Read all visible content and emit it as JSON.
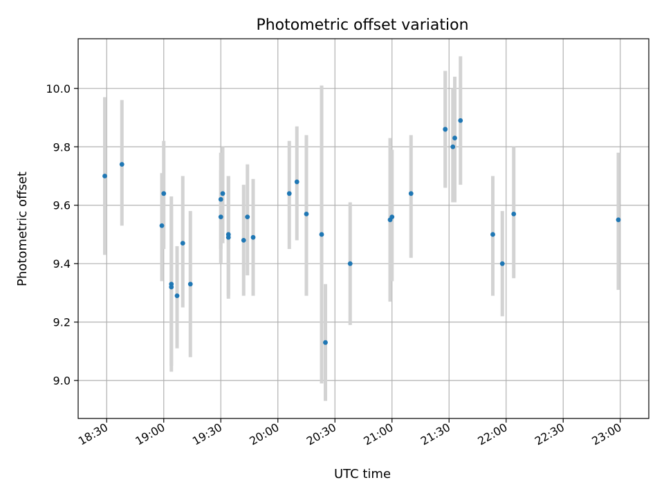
{
  "chart_data": {
    "type": "scatter",
    "title": "Photometric offset variation",
    "xlabel": "UTC time",
    "ylabel": "Photometric offset",
    "xlim": [
      "18:15",
      "23:15"
    ],
    "ylim": [
      8.87,
      10.17
    ],
    "grid": true,
    "x_ticks": [
      "18:30",
      "19:00",
      "19:30",
      "20:00",
      "20:30",
      "21:00",
      "21:30",
      "22:00",
      "22:30",
      "23:00"
    ],
    "y_ticks": [
      "9.0",
      "9.2",
      "9.4",
      "9.6",
      "9.8",
      "10.0"
    ],
    "colors": {
      "point": "#1f77b4",
      "error_bar": "#d3d3d3"
    },
    "series": [
      {
        "points": [
          {
            "x": "18:29",
            "y": 9.7,
            "err_low": 9.43,
            "err_high": 9.97
          },
          {
            "x": "18:38",
            "y": 9.74,
            "err_low": 9.53,
            "err_high": 9.96
          },
          {
            "x": "18:59",
            "y": 9.53,
            "err_low": 9.34,
            "err_high": 9.71
          },
          {
            "x": "19:00",
            "y": 9.64,
            "err_low": 9.45,
            "err_high": 9.82
          },
          {
            "x": "19:04",
            "y": 9.33,
            "err_low": 9.05,
            "err_high": 9.63
          },
          {
            "x": "19:04",
            "y": 9.32,
            "err_low": 9.03,
            "err_high": 9.6
          },
          {
            "x": "19:07",
            "y": 9.29,
            "err_low": 9.11,
            "err_high": 9.46
          },
          {
            "x": "19:10",
            "y": 9.47,
            "err_low": 9.25,
            "err_high": 9.7
          },
          {
            "x": "19:14",
            "y": 9.33,
            "err_low": 9.08,
            "err_high": 9.58
          },
          {
            "x": "19:30",
            "y": 9.56,
            "err_low": 9.4,
            "err_high": 9.72
          },
          {
            "x": "19:30",
            "y": 9.62,
            "err_low": 9.45,
            "err_high": 9.78
          },
          {
            "x": "19:31",
            "y": 9.64,
            "err_low": 9.47,
            "err_high": 9.8
          },
          {
            "x": "19:34",
            "y": 9.49,
            "err_low": 9.28,
            "err_high": 9.7
          },
          {
            "x": "19:34",
            "y": 9.5,
            "err_low": 9.29,
            "err_high": 9.7
          },
          {
            "x": "19:42",
            "y": 9.48,
            "err_low": 9.29,
            "err_high": 9.67
          },
          {
            "x": "19:44",
            "y": 9.56,
            "err_low": 9.36,
            "err_high": 9.74
          },
          {
            "x": "19:47",
            "y": 9.49,
            "err_low": 9.29,
            "err_high": 9.69
          },
          {
            "x": "20:06",
            "y": 9.64,
            "err_low": 9.45,
            "err_high": 9.82
          },
          {
            "x": "20:10",
            "y": 9.68,
            "err_low": 9.48,
            "err_high": 9.87
          },
          {
            "x": "20:15",
            "y": 9.57,
            "err_low": 9.29,
            "err_high": 9.84
          },
          {
            "x": "20:23",
            "y": 9.5,
            "err_low": 8.99,
            "err_high": 10.01
          },
          {
            "x": "20:25",
            "y": 9.13,
            "err_low": 8.93,
            "err_high": 9.33
          },
          {
            "x": "20:38",
            "y": 9.4,
            "err_low": 9.19,
            "err_high": 9.61
          },
          {
            "x": "20:59",
            "y": 9.55,
            "err_low": 9.27,
            "err_high": 9.83
          },
          {
            "x": "21:00",
            "y": 9.56,
            "err_low": 9.34,
            "err_high": 9.79
          },
          {
            "x": "21:10",
            "y": 9.64,
            "err_low": 9.42,
            "err_high": 9.84
          },
          {
            "x": "21:28",
            "y": 9.86,
            "err_low": 9.66,
            "err_high": 10.06
          },
          {
            "x": "21:28",
            "y": 9.86,
            "err_low": 9.66,
            "err_high": 10.06
          },
          {
            "x": "21:32",
            "y": 9.8,
            "err_low": 9.61,
            "err_high": 10.0
          },
          {
            "x": "21:33",
            "y": 9.83,
            "err_low": 9.61,
            "err_high": 10.04
          },
          {
            "x": "21:36",
            "y": 9.89,
            "err_low": 9.67,
            "err_high": 10.11
          },
          {
            "x": "21:53",
            "y": 9.5,
            "err_low": 9.29,
            "err_high": 9.7
          },
          {
            "x": "21:58",
            "y": 9.4,
            "err_low": 9.22,
            "err_high": 9.58
          },
          {
            "x": "22:04",
            "y": 9.57,
            "err_low": 9.35,
            "err_high": 9.8
          },
          {
            "x": "22:59",
            "y": 9.55,
            "err_low": 9.31,
            "err_high": 9.78
          }
        ]
      }
    ]
  }
}
